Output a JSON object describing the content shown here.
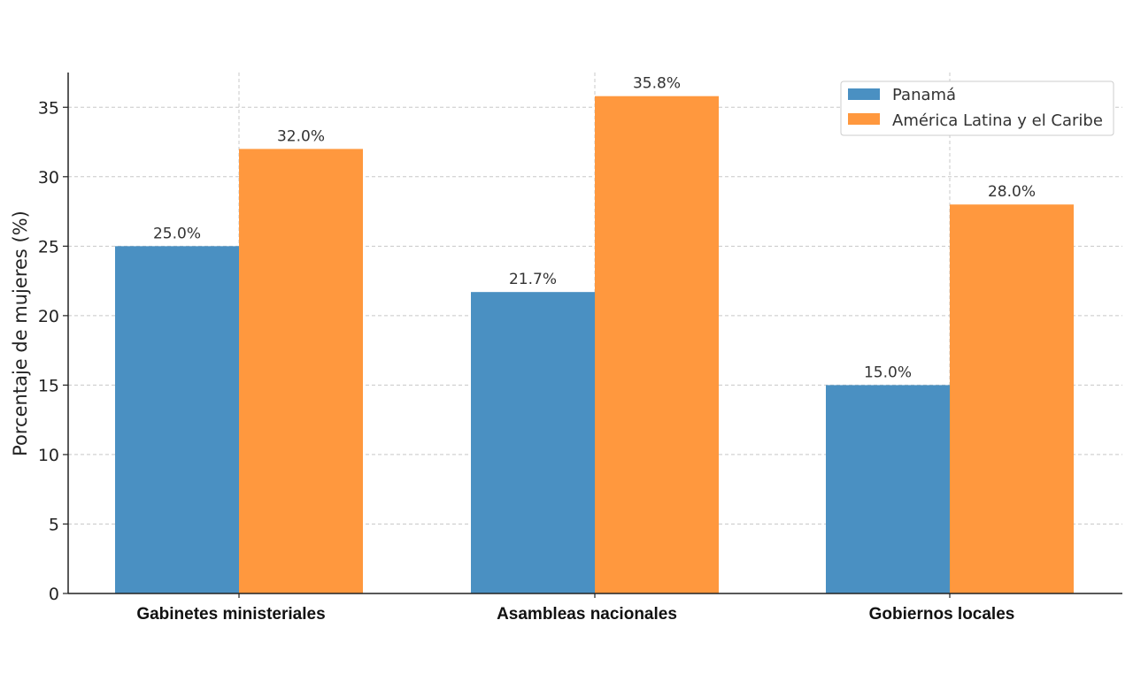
{
  "chart_data": {
    "type": "bar",
    "title": "",
    "xlabel": "",
    "ylabel": "Porcentaje de mujeres (%)",
    "categories": [
      "Gabinetes ministeriales",
      "Asambleas nacionales",
      "Gobiernos locales"
    ],
    "series": [
      {
        "name": "Panamá",
        "values": [
          25.0,
          21.7,
          15.0
        ],
        "labels": [
          "25.0%",
          "21.7%",
          "15.0%"
        ],
        "color": "#4a90c2"
      },
      {
        "name": "América Latina y el Caribe",
        "values": [
          32.0,
          35.8,
          28.0
        ],
        "labels": [
          "32.0%",
          "35.8%",
          "28.0%"
        ],
        "color": "#ff983e"
      }
    ],
    "yticks": [
      0,
      5,
      10,
      15,
      20,
      25,
      30,
      35
    ],
    "ylim": [
      0,
      37.5
    ],
    "grid": true,
    "legend_position": "top-right"
  }
}
